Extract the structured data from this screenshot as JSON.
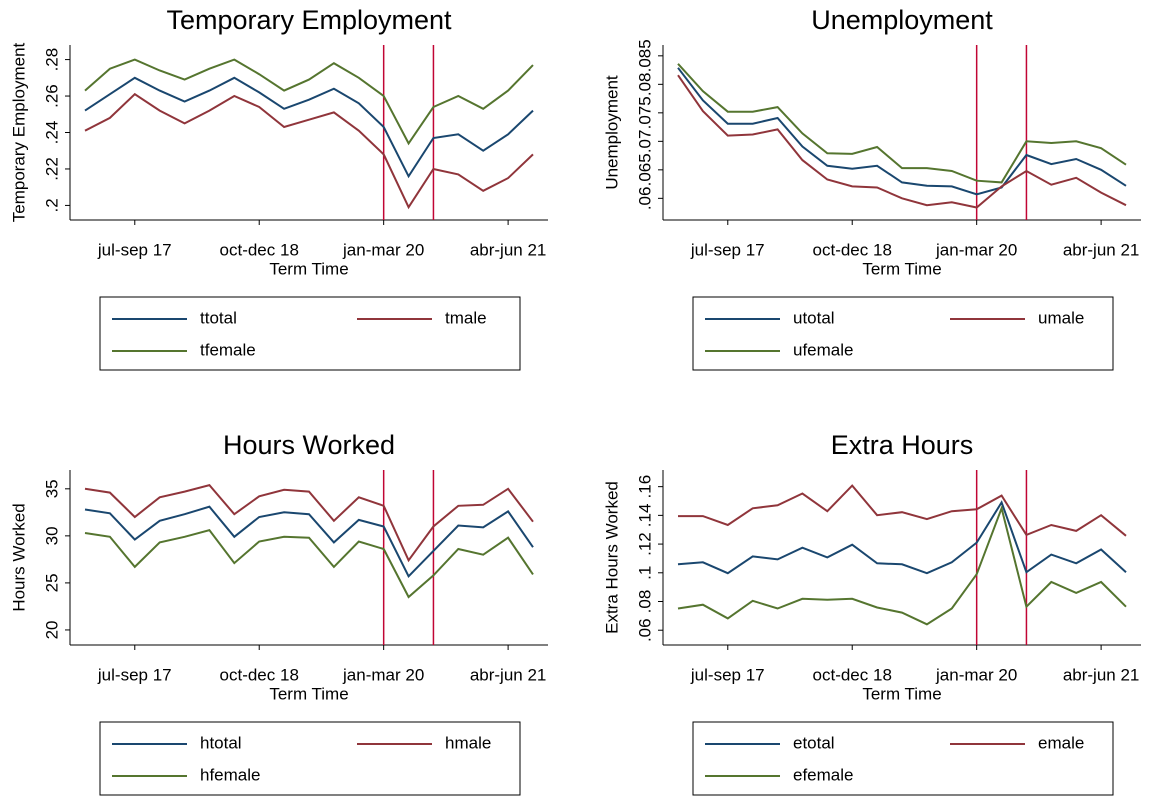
{
  "chart_data": [
    {
      "type": "line",
      "title": "Temporary Employment",
      "xlabel": "Term Time",
      "ylabel": "Temporary Employment",
      "categories": [
        null,
        null,
        "jul-sep 17",
        null,
        null,
        null,
        null,
        "oct-dec 18",
        null,
        null,
        null,
        null,
        "jan-mar 20",
        null,
        null,
        null,
        null,
        "abr-jun 21",
        null
      ],
      "series": [
        {
          "name": "ttotal",
          "color": "#1a476f",
          "values": [
            0.252,
            0.261,
            0.27,
            0.263,
            0.257,
            0.263,
            0.27,
            0.262,
            0.253,
            0.258,
            0.264,
            0.256,
            0.243,
            0.216,
            0.237,
            0.239,
            0.23,
            0.239,
            0.252
          ]
        },
        {
          "name": "tmale",
          "color": "#90353b",
          "values": [
            0.241,
            0.248,
            0.261,
            0.252,
            0.245,
            0.252,
            0.26,
            0.254,
            0.243,
            0.247,
            0.251,
            0.241,
            0.228,
            0.199,
            0.22,
            0.217,
            0.208,
            0.215,
            0.228
          ]
        },
        {
          "name": "tfemale",
          "color": "#55752f",
          "values": [
            0.263,
            0.275,
            0.28,
            0.274,
            0.269,
            0.275,
            0.28,
            0.272,
            0.263,
            0.269,
            0.278,
            0.27,
            0.26,
            0.234,
            0.254,
            0.26,
            0.253,
            0.263,
            0.277
          ]
        }
      ],
      "ylim": [
        0.192,
        0.288
      ],
      "yticks": [
        {
          "value": 0.2,
          "label": ".2"
        },
        {
          "value": 0.22,
          "label": ".22"
        },
        {
          "value": 0.24,
          "label": ".24"
        },
        {
          "value": 0.26,
          "label": ".26"
        },
        {
          "value": 0.28,
          "label": ".28"
        }
      ],
      "vlines": [
        12,
        14
      ],
      "vline_color": "#c10534",
      "grid": false
    },
    {
      "type": "line",
      "title": "Unemployment",
      "xlabel": "Term Time",
      "ylabel": "Unemployment",
      "categories": [
        null,
        null,
        "jul-sep 17",
        null,
        null,
        null,
        null,
        "oct-dec 18",
        null,
        null,
        null,
        null,
        "jan-mar 20",
        null,
        null,
        null,
        null,
        "abr-jun 21",
        null
      ],
      "series": [
        {
          "name": "utotal",
          "color": "#1a476f",
          "values": [
            0.0829,
            0.0772,
            0.0731,
            0.0731,
            0.0741,
            0.0691,
            0.0657,
            0.0652,
            0.0657,
            0.0628,
            0.0622,
            0.0621,
            0.0607,
            0.0619,
            0.0676,
            0.066,
            0.0669,
            0.065,
            0.0622
          ]
        },
        {
          "name": "umale",
          "color": "#90353b",
          "values": [
            0.0816,
            0.0753,
            0.071,
            0.0712,
            0.0721,
            0.0667,
            0.0633,
            0.0621,
            0.0619,
            0.06,
            0.0588,
            0.0593,
            0.0584,
            0.0621,
            0.0648,
            0.0624,
            0.0636,
            0.061,
            0.0588
          ]
        },
        {
          "name": "ufemale",
          "color": "#55752f",
          "values": [
            0.0836,
            0.0788,
            0.0752,
            0.0752,
            0.076,
            0.0714,
            0.0679,
            0.0678,
            0.069,
            0.0653,
            0.0653,
            0.0648,
            0.0631,
            0.0628,
            0.07,
            0.0697,
            0.07,
            0.0688,
            0.0659
          ]
        }
      ],
      "ylim": [
        0.0562,
        0.0869
      ],
      "yticks": [
        {
          "value": 0.06,
          "label": ".06"
        },
        {
          "value": 0.065,
          "label": ".065"
        },
        {
          "value": 0.07,
          "label": ".07"
        },
        {
          "value": 0.075,
          "label": ".075"
        },
        {
          "value": 0.08,
          "label": ".08"
        },
        {
          "value": 0.085,
          "label": ".085"
        }
      ],
      "vlines": [
        12,
        14
      ],
      "vline_color": "#c10534",
      "grid": false
    },
    {
      "type": "line",
      "title": "Hours Worked",
      "xlabel": "Term Time",
      "ylabel": "Hours Worked",
      "categories": [
        null,
        null,
        "jul-sep 17",
        null,
        null,
        null,
        null,
        "oct-dec 18",
        null,
        null,
        null,
        null,
        "jan-mar 20",
        null,
        null,
        null,
        null,
        "abr-jun 21",
        null
      ],
      "series": [
        {
          "name": "htotal",
          "color": "#1a476f",
          "values": [
            32.8,
            32.4,
            29.6,
            31.6,
            32.3,
            33.1,
            29.9,
            32.0,
            32.5,
            32.3,
            29.3,
            31.7,
            31.0,
            25.7,
            28.4,
            31.1,
            30.9,
            32.6,
            28.8
          ]
        },
        {
          "name": "hmale",
          "color": "#90353b",
          "values": [
            35.0,
            34.6,
            32.0,
            34.1,
            34.7,
            35.4,
            32.3,
            34.2,
            34.9,
            34.7,
            31.6,
            34.1,
            33.2,
            27.4,
            31.0,
            33.2,
            33.3,
            35.0,
            31.5
          ]
        },
        {
          "name": "hfemale",
          "color": "#55752f",
          "values": [
            30.3,
            29.9,
            26.7,
            29.3,
            29.9,
            30.6,
            27.1,
            29.4,
            29.9,
            29.8,
            26.7,
            29.4,
            28.6,
            23.5,
            25.8,
            28.6,
            28.0,
            29.8,
            25.9
          ]
        }
      ],
      "ylim": [
        18.4,
        37.0
      ],
      "yticks": [
        20,
        25,
        30,
        35
      ],
      "vlines": [
        12,
        14
      ],
      "vline_color": "#c10534",
      "grid": false
    },
    {
      "type": "line",
      "title": "Extra Hours",
      "xlabel": "Term Time",
      "ylabel": "Extra Hours Worked",
      "categories": [
        null,
        null,
        "jul-sep 17",
        null,
        null,
        null,
        null,
        "oct-dec 18",
        null,
        null,
        null,
        null,
        "jan-mar 20",
        null,
        null,
        null,
        null,
        "abr-jun 21",
        null
      ],
      "series": [
        {
          "name": "etotal",
          "color": "#1a476f",
          "values": [
            0.1059,
            0.1073,
            0.0997,
            0.1114,
            0.1093,
            0.1175,
            0.1107,
            0.1196,
            0.1066,
            0.1059,
            0.0997,
            0.1073,
            0.121,
            0.149,
            0.1004,
            0.1127,
            0.1066,
            0.1162,
            0.1004
          ]
        },
        {
          "name": "emale",
          "color": "#90353b",
          "values": [
            0.1395,
            0.1395,
            0.1333,
            0.1449,
            0.147,
            0.1552,
            0.1429,
            0.1607,
            0.1401,
            0.1422,
            0.1374,
            0.1429,
            0.1442,
            0.1538,
            0.1264,
            0.1333,
            0.1292,
            0.1401,
            0.1258
          ]
        },
        {
          "name": "efemale",
          "color": "#55752f",
          "values": [
            0.0751,
            0.0778,
            0.0682,
            0.0805,
            0.0751,
            0.0819,
            0.0812,
            0.0819,
            0.0758,
            0.0723,
            0.0641,
            0.0751,
            0.099,
            0.1449,
            0.0764,
            0.0936,
            0.086,
            0.0936,
            0.0764
          ]
        }
      ],
      "ylim": [
        0.0497,
        0.1716
      ],
      "yticks": [
        {
          "value": 0.06,
          "label": ".06"
        },
        {
          "value": 0.08,
          "label": ".08"
        },
        {
          "value": 0.1,
          "label": ".1"
        },
        {
          "value": 0.12,
          "label": ".12"
        },
        {
          "value": 0.14,
          "label": ".14"
        },
        {
          "value": 0.16,
          "label": ".16"
        }
      ],
      "vlines": [
        12,
        14
      ],
      "vline_color": "#c10534",
      "grid": false
    }
  ]
}
